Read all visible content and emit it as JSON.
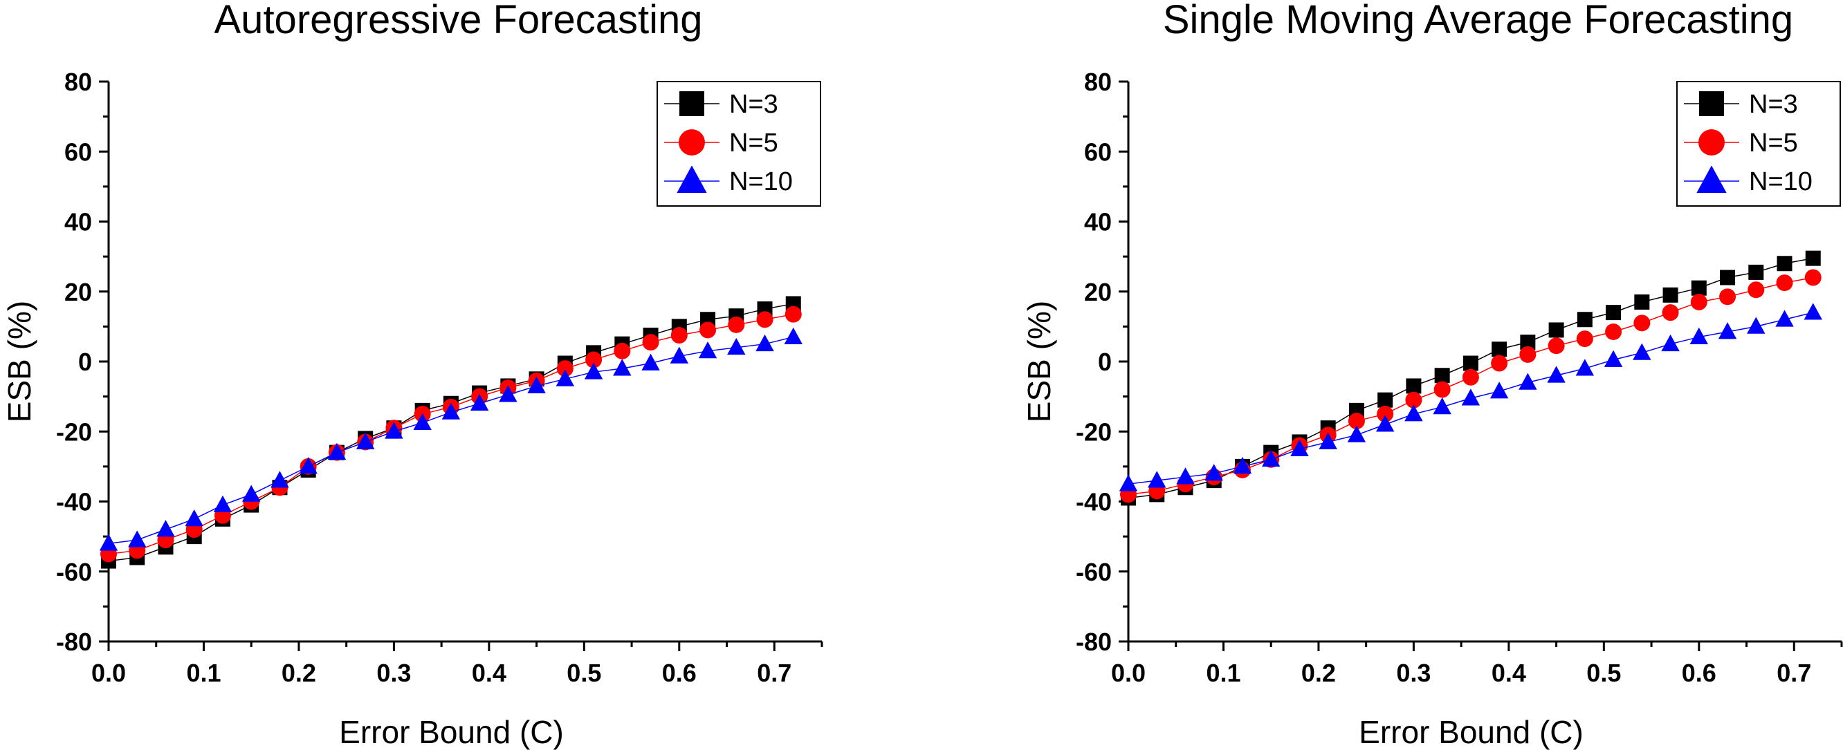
{
  "chart_data": [
    {
      "type": "line",
      "title": "Autoregressive Forecasting",
      "xlabel": "Error Bound (C)",
      "ylabel": "ESB (%)",
      "xlim": [
        0.0,
        0.75
      ],
      "ylim": [
        -80,
        80
      ],
      "xticks": [
        "0.0",
        "0.1",
        "0.2",
        "0.3",
        "0.4",
        "0.5",
        "0.6",
        "0.7"
      ],
      "yticks": [
        "80",
        "60",
        "40",
        "20",
        "0",
        "-20",
        "-40",
        "-60",
        "-80"
      ],
      "x": [
        0.0,
        0.03,
        0.06,
        0.09,
        0.12,
        0.15,
        0.18,
        0.21,
        0.24,
        0.27,
        0.3,
        0.33,
        0.36,
        0.39,
        0.42,
        0.45,
        0.48,
        0.51,
        0.54,
        0.57,
        0.6,
        0.63,
        0.66,
        0.69,
        0.72
      ],
      "legend_position": "top-right",
      "series": [
        {
          "name": "N=3",
          "color": "#000000",
          "marker": "square",
          "values": [
            -57,
            -56,
            -53,
            -50,
            -45,
            -41,
            -36,
            -31,
            -26,
            -22,
            -19,
            -14,
            -12,
            -9,
            -7,
            -5,
            -0.5,
            2.5,
            5,
            7.5,
            10,
            12,
            13,
            15,
            16.5
          ]
        },
        {
          "name": "N=5",
          "color": "#ff0000",
          "marker": "circle",
          "values": [
            -55,
            -54,
            -51,
            -48,
            -44,
            -40,
            -36,
            -30,
            -26,
            -23,
            -19,
            -15,
            -13,
            -10,
            -7.5,
            -5.5,
            -2,
            0.5,
            3,
            5.5,
            7.5,
            9,
            10.5,
            12,
            13.5
          ]
        },
        {
          "name": "N=10",
          "color": "#0000ff",
          "marker": "triangle",
          "values": [
            -52,
            -51,
            -48,
            -45,
            -41,
            -38,
            -34,
            -30,
            -26,
            -23,
            -20,
            -17.5,
            -14.5,
            -12,
            -9.5,
            -7,
            -5,
            -3,
            -2,
            -0.5,
            1.5,
            3,
            4,
            5,
            7
          ]
        }
      ]
    },
    {
      "type": "line",
      "title": "Single Moving Average Forecasting",
      "xlabel": "Error Bound (C)",
      "ylabel": "ESB (%)",
      "xlim": [
        0.0,
        0.75
      ],
      "ylim": [
        -80,
        80
      ],
      "xticks": [
        "0.0",
        "0.1",
        "0.2",
        "0.3",
        "0.4",
        "0.5",
        "0.6",
        "0.7"
      ],
      "yticks": [
        "80",
        "60",
        "40",
        "20",
        "0",
        "-20",
        "-40",
        "-60",
        "-80"
      ],
      "x": [
        0.0,
        0.03,
        0.06,
        0.09,
        0.12,
        0.15,
        0.18,
        0.21,
        0.24,
        0.27,
        0.3,
        0.33,
        0.36,
        0.39,
        0.42,
        0.45,
        0.48,
        0.51,
        0.54,
        0.57,
        0.6,
        0.63,
        0.66,
        0.69,
        0.72
      ],
      "legend_position": "top-right",
      "series": [
        {
          "name": "N=3",
          "color": "#000000",
          "marker": "square",
          "values": [
            -39,
            -38,
            -36,
            -34,
            -30,
            -26,
            -23,
            -19,
            -14,
            -11,
            -7,
            -4,
            -0.5,
            3.5,
            5.5,
            9,
            12,
            14,
            17,
            19,
            21,
            24,
            25.5,
            28,
            29.5
          ]
        },
        {
          "name": "N=5",
          "color": "#ff0000",
          "marker": "circle",
          "values": [
            -38,
            -37,
            -35,
            -33,
            -31,
            -28,
            -24,
            -21,
            -17,
            -15,
            -11,
            -8,
            -4.5,
            -0.5,
            2,
            4.5,
            6.5,
            8.5,
            11,
            14,
            17,
            18.5,
            20.5,
            22.5,
            24
          ]
        },
        {
          "name": "N=10",
          "color": "#0000ff",
          "marker": "triangle",
          "values": [
            -35,
            -34,
            -33,
            -32,
            -30,
            -28,
            -25,
            -23,
            -21,
            -18,
            -15,
            -13,
            -10.5,
            -8.5,
            -6,
            -4,
            -2,
            0.5,
            2.5,
            5,
            7,
            8.5,
            10,
            12,
            14
          ]
        }
      ]
    }
  ]
}
